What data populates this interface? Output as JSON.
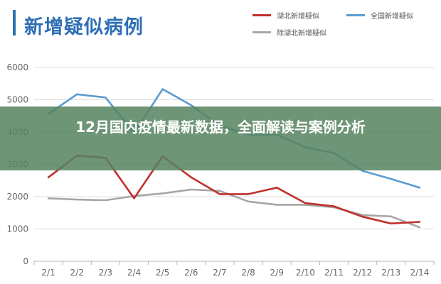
{
  "chart_data": {
    "type": "line",
    "title": "新增疑似病例",
    "categories": [
      "2/1",
      "2/2",
      "2/3",
      "2/4",
      "2/5",
      "2/6",
      "2/7",
      "2/8",
      "2/9",
      "2/10",
      "2/11",
      "2/12",
      "2/13",
      "2/14"
    ],
    "ylim": [
      0,
      6000
    ],
    "yticks": [
      0,
      1000,
      2000,
      3000,
      4000,
      5000,
      6000
    ],
    "grid": true,
    "legend_position": "top-right",
    "series": [
      {
        "name": "湖北新增疑似",
        "color": "#c0302b",
        "values": [
          2600,
          3270,
          3200,
          1950,
          3250,
          2600,
          2080,
          2080,
          2280,
          1800,
          1700,
          1380,
          1170,
          1220
        ]
      },
      {
        "name": "全国新增疑似",
        "color": "#5b9bd0",
        "values": [
          4560,
          5170,
          5070,
          3970,
          5330,
          4830,
          4200,
          3920,
          3920,
          3530,
          3350,
          2800,
          2550,
          2280
        ]
      },
      {
        "name": "除湖北新增疑似",
        "color": "#a6a6a6",
        "values": [
          1950,
          1910,
          1890,
          2020,
          2100,
          2220,
          2180,
          1850,
          1750,
          1750,
          1670,
          1430,
          1390,
          1050
        ]
      }
    ]
  },
  "overlay": {
    "headline": "12月国内疫情最新数据，全面解读与案例分析"
  }
}
